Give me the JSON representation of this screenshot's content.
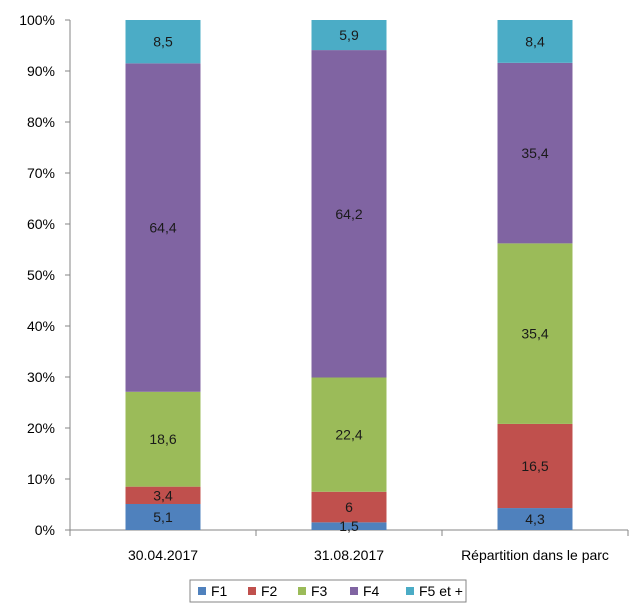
{
  "chart_data": {
    "type": "bar",
    "stacked": true,
    "percent_stacked": true,
    "categories": [
      "30.04.2017",
      "31.08.2017",
      "Répartition dans le parc"
    ],
    "series": [
      {
        "name": "F1",
        "color": "#4f81bd",
        "values": [
          5.1,
          1.5,
          4.3
        ],
        "labels": [
          "5,1",
          "1,5",
          "4,3"
        ]
      },
      {
        "name": "F2",
        "color": "#c0504d",
        "values": [
          3.4,
          6,
          16.5
        ],
        "labels": [
          "3,4",
          "6",
          "16,5"
        ]
      },
      {
        "name": "F3",
        "color": "#9bbb59",
        "values": [
          18.6,
          22.4,
          35.4
        ],
        "labels": [
          "18,6",
          "22,4",
          "35,4"
        ]
      },
      {
        "name": "F4",
        "color": "#8064a2",
        "values": [
          64.4,
          64.2,
          35.4
        ],
        "labels": [
          "64,4",
          "64,2",
          "35,4"
        ]
      },
      {
        "name": "F5 et +",
        "color": "#4bacc6",
        "values": [
          8.5,
          5.9,
          8.4
        ],
        "labels": [
          "8,5",
          "5,9",
          "8,4"
        ]
      }
    ],
    "yticks": [
      "0%",
      "10%",
      "20%",
      "30%",
      "40%",
      "50%",
      "60%",
      "70%",
      "80%",
      "90%",
      "100%"
    ],
    "ylim": [
      0,
      100
    ],
    "grid": false,
    "legend_position": "bottom"
  }
}
